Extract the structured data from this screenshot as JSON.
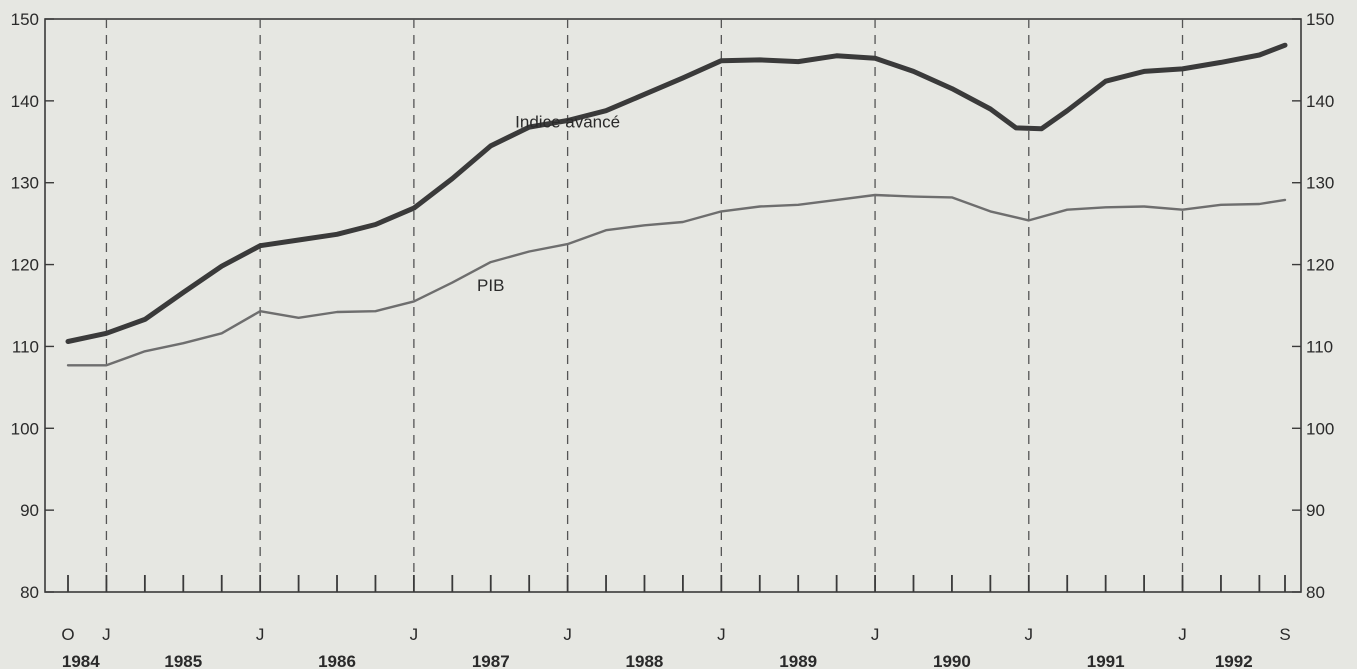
{
  "chart_data": {
    "type": "line",
    "y_ticks": [
      80,
      90,
      100,
      110,
      120,
      130,
      140,
      150
    ],
    "ylim": [
      80,
      150
    ],
    "x_start": "1984-10",
    "x_end": "1992-09",
    "month_labels": [
      {
        "label": "O",
        "month": "1984-10"
      },
      {
        "label": "J",
        "month": "1985-01"
      },
      {
        "label": "J",
        "month": "1986-01"
      },
      {
        "label": "J",
        "month": "1987-01"
      },
      {
        "label": "J",
        "month": "1988-01"
      },
      {
        "label": "J",
        "month": "1989-01"
      },
      {
        "label": "J",
        "month": "1990-01"
      },
      {
        "label": "J",
        "month": "1991-01"
      },
      {
        "label": "J",
        "month": "1992-01"
      },
      {
        "label": "S",
        "month": "1992-09"
      }
    ],
    "year_labels": [
      {
        "label": "1984",
        "month": "1984-11"
      },
      {
        "label": "1985",
        "month": "1985-07"
      },
      {
        "label": "1986",
        "month": "1986-07"
      },
      {
        "label": "1987",
        "month": "1987-07"
      },
      {
        "label": "1988",
        "month": "1988-07"
      },
      {
        "label": "1989",
        "month": "1989-07"
      },
      {
        "label": "1990",
        "month": "1990-07"
      },
      {
        "label": "1991",
        "month": "1991-07"
      },
      {
        "label": "1992",
        "month": "1992-05"
      }
    ],
    "dashed_gridlines_at": [
      "1985-01",
      "1986-01",
      "1987-01",
      "1988-01",
      "1989-01",
      "1990-01",
      "1991-01",
      "1992-01"
    ],
    "series": [
      {
        "name": "Indice avancé",
        "color": "#3a3a3a",
        "line_weight": "heavy",
        "points": [
          [
            "1984-10",
            110.6
          ],
          [
            "1985-01",
            111.6
          ],
          [
            "1985-04",
            113.3
          ],
          [
            "1985-07",
            116.6
          ],
          [
            "1985-10",
            119.8
          ],
          [
            "1986-01",
            122.3
          ],
          [
            "1986-04",
            123.0
          ],
          [
            "1986-07",
            123.7
          ],
          [
            "1986-10",
            124.9
          ],
          [
            "1987-01",
            126.9
          ],
          [
            "1987-04",
            130.5
          ],
          [
            "1987-07",
            134.5
          ],
          [
            "1987-10",
            136.8
          ],
          [
            "1988-01",
            137.6
          ],
          [
            "1988-04",
            138.8
          ],
          [
            "1988-07",
            140.8
          ],
          [
            "1988-10",
            142.8
          ],
          [
            "1989-01",
            144.9
          ],
          [
            "1989-04",
            145.0
          ],
          [
            "1989-07",
            144.8
          ],
          [
            "1989-10",
            145.5
          ],
          [
            "1990-01",
            145.2
          ],
          [
            "1990-04",
            143.6
          ],
          [
            "1990-07",
            141.5
          ],
          [
            "1990-10",
            139.0
          ],
          [
            "1990-12",
            136.7
          ],
          [
            "1991-02",
            136.6
          ],
          [
            "1991-04",
            138.8
          ],
          [
            "1991-07",
            142.4
          ],
          [
            "1991-10",
            143.6
          ],
          [
            "1992-01",
            143.9
          ],
          [
            "1992-04",
            144.7
          ],
          [
            "1992-07",
            145.6
          ],
          [
            "1992-09",
            146.8
          ]
        ]
      },
      {
        "name": "PIB",
        "color": "#6e6e6e",
        "line_weight": "light",
        "points": [
          [
            "1984-10",
            107.7
          ],
          [
            "1985-01",
            107.7
          ],
          [
            "1985-04",
            109.4
          ],
          [
            "1985-07",
            110.4
          ],
          [
            "1985-10",
            111.6
          ],
          [
            "1986-01",
            114.3
          ],
          [
            "1986-04",
            113.5
          ],
          [
            "1986-07",
            114.2
          ],
          [
            "1986-10",
            114.3
          ],
          [
            "1987-01",
            115.5
          ],
          [
            "1987-04",
            117.8
          ],
          [
            "1987-07",
            120.3
          ],
          [
            "1987-10",
            121.6
          ],
          [
            "1988-01",
            122.5
          ],
          [
            "1988-04",
            124.2
          ],
          [
            "1988-07",
            124.8
          ],
          [
            "1988-10",
            125.2
          ],
          [
            "1989-01",
            126.5
          ],
          [
            "1989-04",
            127.1
          ],
          [
            "1989-07",
            127.3
          ],
          [
            "1989-10",
            127.9
          ],
          [
            "1990-01",
            128.5
          ],
          [
            "1990-04",
            128.3
          ],
          [
            "1990-07",
            128.2
          ],
          [
            "1990-10",
            126.5
          ],
          [
            "1991-01",
            125.4
          ],
          [
            "1991-04",
            126.7
          ],
          [
            "1991-07",
            127.0
          ],
          [
            "1991-10",
            127.1
          ],
          [
            "1992-01",
            126.7
          ],
          [
            "1992-04",
            127.3
          ],
          [
            "1992-07",
            127.4
          ],
          [
            "1992-09",
            127.9
          ]
        ]
      }
    ],
    "series_labels": [
      {
        "text": "Indice avancé",
        "month": "1988-01",
        "value": 137.5
      },
      {
        "text": "PIB",
        "month": "1987-07",
        "value": 117.5
      }
    ]
  }
}
